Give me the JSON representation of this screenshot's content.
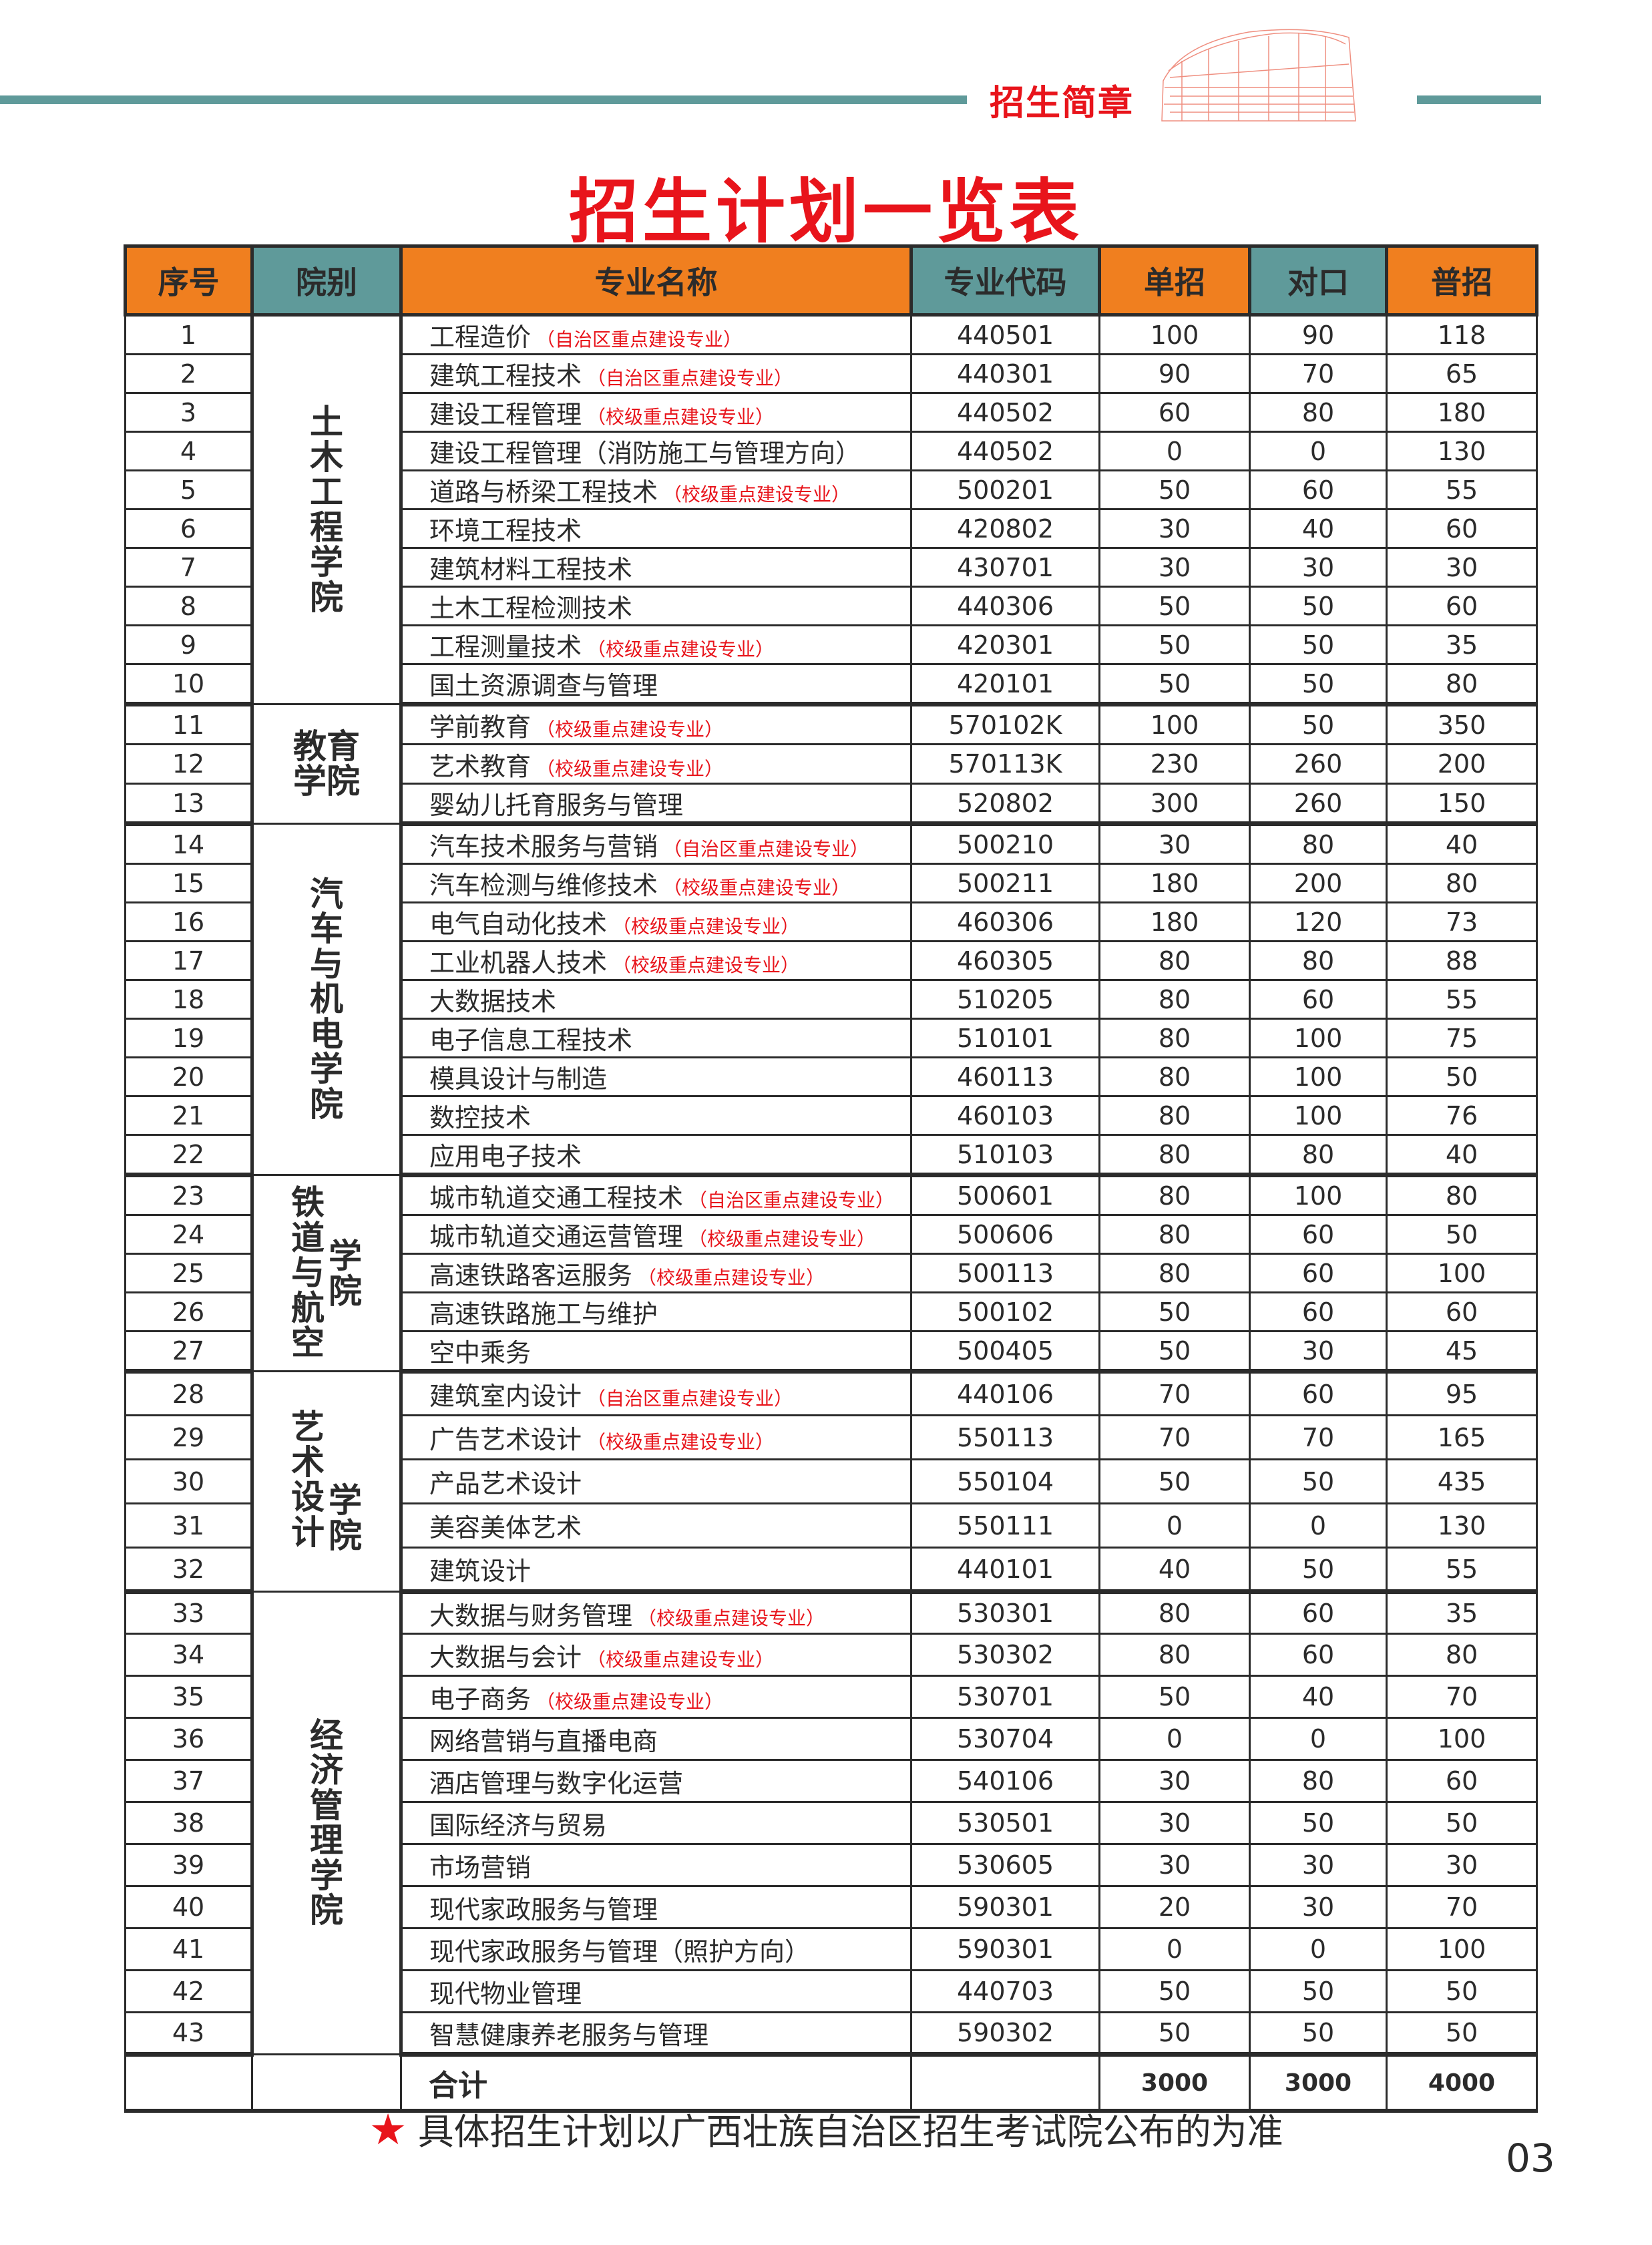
{
  "header": {
    "brand": "招生简章",
    "title": "招生计划一览表"
  },
  "colors": {
    "accent_red": "#e8141b",
    "header_orange": "#f07f1f",
    "header_teal": "#5f9a9a"
  },
  "table": {
    "columns": [
      "序号",
      "院别",
      "专业名称",
      "专业代码",
      "单招",
      "对口",
      "普招"
    ],
    "groups": [
      {
        "college": "土木工程学院",
        "rows": [
          {
            "no": "1",
            "name": "工程造价",
            "note": "（自治区重点建设专业）",
            "code": "440501",
            "dz": "100",
            "dk": "90",
            "pz": "118"
          },
          {
            "no": "2",
            "name": "建筑工程技术",
            "note": "（自治区重点建设专业）",
            "code": "440301",
            "dz": "90",
            "dk": "70",
            "pz": "65"
          },
          {
            "no": "3",
            "name": "建设工程管理",
            "note": "（校级重点建设专业）",
            "code": "440502",
            "dz": "60",
            "dk": "80",
            "pz": "180"
          },
          {
            "no": "4",
            "name": "建设工程管理（消防施工与管理方向）",
            "note": "",
            "code": "440502",
            "dz": "0",
            "dk": "0",
            "pz": "130"
          },
          {
            "no": "5",
            "name": "道路与桥梁工程技术",
            "note": "（校级重点建设专业）",
            "code": "500201",
            "dz": "50",
            "dk": "60",
            "pz": "55"
          },
          {
            "no": "6",
            "name": "环境工程技术",
            "note": "",
            "code": "420802",
            "dz": "30",
            "dk": "40",
            "pz": "60"
          },
          {
            "no": "7",
            "name": "建筑材料工程技术",
            "note": "",
            "code": "430701",
            "dz": "30",
            "dk": "30",
            "pz": "30"
          },
          {
            "no": "8",
            "name": "土木工程检测技术",
            "note": "",
            "code": "440306",
            "dz": "50",
            "dk": "50",
            "pz": "60"
          },
          {
            "no": "9",
            "name": "工程测量技术",
            "note": "（校级重点建设专业）",
            "code": "420301",
            "dz": "50",
            "dk": "50",
            "pz": "35"
          },
          {
            "no": "10",
            "name": "国土资源调查与管理",
            "note": "",
            "code": "420101",
            "dz": "50",
            "dk": "50",
            "pz": "80"
          }
        ]
      },
      {
        "college": "教育学院",
        "rows": [
          {
            "no": "11",
            "name": "学前教育",
            "note": "（校级重点建设专业）",
            "code": "570102K",
            "dz": "100",
            "dk": "50",
            "pz": "350"
          },
          {
            "no": "12",
            "name": "艺术教育",
            "note": "（校级重点建设专业）",
            "code": "570113K",
            "dz": "230",
            "dk": "260",
            "pz": "200"
          },
          {
            "no": "13",
            "name": "婴幼儿托育服务与管理",
            "note": "",
            "code": "520802",
            "dz": "300",
            "dk": "260",
            "pz": "150"
          }
        ]
      },
      {
        "college": "汽车与机电学院",
        "rows": [
          {
            "no": "14",
            "name": "汽车技术服务与营销",
            "note": "（自治区重点建设专业）",
            "code": "500210",
            "dz": "30",
            "dk": "80",
            "pz": "40"
          },
          {
            "no": "15",
            "name": "汽车检测与维修技术",
            "note": "（校级重点建设专业）",
            "code": "500211",
            "dz": "180",
            "dk": "200",
            "pz": "80"
          },
          {
            "no": "16",
            "name": "电气自动化技术",
            "note": "（校级重点建设专业）",
            "code": "460306",
            "dz": "180",
            "dk": "120",
            "pz": "73"
          },
          {
            "no": "17",
            "name": "工业机器人技术",
            "note": "（校级重点建设专业）",
            "code": "460305",
            "dz": "80",
            "dk": "80",
            "pz": "88"
          },
          {
            "no": "18",
            "name": "大数据技术",
            "note": "",
            "code": "510205",
            "dz": "80",
            "dk": "60",
            "pz": "55"
          },
          {
            "no": "19",
            "name": "电子信息工程技术",
            "note": "",
            "code": "510101",
            "dz": "80",
            "dk": "100",
            "pz": "75"
          },
          {
            "no": "20",
            "name": "模具设计与制造",
            "note": "",
            "code": "460113",
            "dz": "80",
            "dk": "100",
            "pz": "50"
          },
          {
            "no": "21",
            "name": "数控技术",
            "note": "",
            "code": "460103",
            "dz": "80",
            "dk": "100",
            "pz": "76"
          },
          {
            "no": "22",
            "name": "应用电子技术",
            "note": "",
            "code": "510103",
            "dz": "80",
            "dk": "80",
            "pz": "40"
          }
        ]
      },
      {
        "college": "铁道与航空学院",
        "rows": [
          {
            "no": "23",
            "name": "城市轨道交通工程技术",
            "note": "（自治区重点建设专业）",
            "code": "500601",
            "dz": "80",
            "dk": "100",
            "pz": "80"
          },
          {
            "no": "24",
            "name": "城市轨道交通运营管理",
            "note": "（校级重点建设专业）",
            "code": "500606",
            "dz": "80",
            "dk": "60",
            "pz": "50"
          },
          {
            "no": "25",
            "name": "高速铁路客运服务",
            "note": "（校级重点建设专业）",
            "code": "500113",
            "dz": "80",
            "dk": "60",
            "pz": "100"
          },
          {
            "no": "26",
            "name": "高速铁路施工与维护",
            "note": "",
            "code": "500102",
            "dz": "50",
            "dk": "60",
            "pz": "60"
          },
          {
            "no": "27",
            "name": "空中乘务",
            "note": "",
            "code": "500405",
            "dz": "50",
            "dk": "30",
            "pz": "45"
          }
        ]
      },
      {
        "college": "艺术设计学院",
        "rows": [
          {
            "no": "28",
            "name": "建筑室内设计",
            "note": "（自治区重点建设专业）",
            "code": "440106",
            "dz": "70",
            "dk": "60",
            "pz": "95"
          },
          {
            "no": "29",
            "name": "广告艺术设计",
            "note": "（校级重点建设专业）",
            "code": "550113",
            "dz": "70",
            "dk": "70",
            "pz": "165"
          },
          {
            "no": "30",
            "name": "产品艺术设计",
            "note": "",
            "code": "550104",
            "dz": "50",
            "dk": "50",
            "pz": "435"
          },
          {
            "no": "31",
            "name": "美容美体艺术",
            "note": "",
            "code": "550111",
            "dz": "0",
            "dk": "0",
            "pz": "130"
          },
          {
            "no": "32",
            "name": "建筑设计",
            "note": "",
            "code": "440101",
            "dz": "40",
            "dk": "50",
            "pz": "55"
          }
        ]
      },
      {
        "college": "经济管理学院",
        "rows": [
          {
            "no": "33",
            "name": "大数据与财务管理",
            "note": "（校级重点建设专业）",
            "code": "530301",
            "dz": "80",
            "dk": "60",
            "pz": "35"
          },
          {
            "no": "34",
            "name": "大数据与会计",
            "note": "（校级重点建设专业）",
            "code": "530302",
            "dz": "80",
            "dk": "60",
            "pz": "80"
          },
          {
            "no": "35",
            "name": "电子商务",
            "note": "（校级重点建设专业）",
            "code": "530701",
            "dz": "50",
            "dk": "40",
            "pz": "70"
          },
          {
            "no": "36",
            "name": "网络营销与直播电商",
            "note": "",
            "code": "530704",
            "dz": "0",
            "dk": "0",
            "pz": "100"
          },
          {
            "no": "37",
            "name": "酒店管理与数字化运营",
            "note": "",
            "code": "540106",
            "dz": "30",
            "dk": "80",
            "pz": "60"
          },
          {
            "no": "38",
            "name": "国际经济与贸易",
            "note": "",
            "code": "530501",
            "dz": "30",
            "dk": "50",
            "pz": "50"
          },
          {
            "no": "39",
            "name": "市场营销",
            "note": "",
            "code": "530605",
            "dz": "30",
            "dk": "30",
            "pz": "30"
          },
          {
            "no": "40",
            "name": "现代家政服务与管理",
            "note": "",
            "code": "590301",
            "dz": "20",
            "dk": "30",
            "pz": "70"
          },
          {
            "no": "41",
            "name": "现代家政服务与管理（照护方向）",
            "note": "",
            "code": "590301",
            "dz": "0",
            "dk": "0",
            "pz": "100"
          },
          {
            "no": "42",
            "name": "现代物业管理",
            "note": "",
            "code": "440703",
            "dz": "50",
            "dk": "50",
            "pz": "50"
          },
          {
            "no": "43",
            "name": "智慧健康养老服务与管理",
            "note": "",
            "code": "590302",
            "dz": "50",
            "dk": "50",
            "pz": "50"
          }
        ]
      }
    ],
    "total": {
      "label": "合计",
      "dz": "3000",
      "dk": "3000",
      "pz": "4000"
    }
  },
  "footer": {
    "icon": "star-icon",
    "note": "具体招生计划以广西壮族自治区招生考试院公布的为准",
    "page": "03"
  }
}
